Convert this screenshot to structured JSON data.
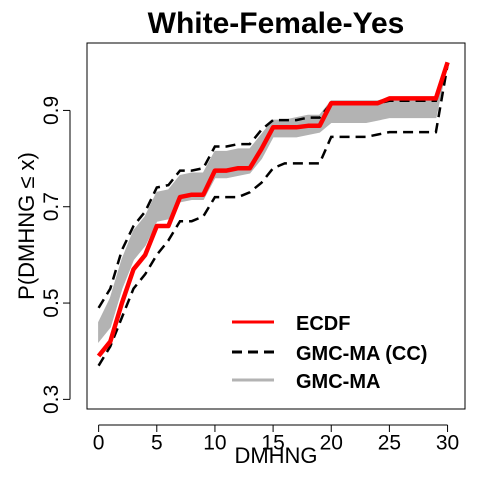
{
  "chart_data": {
    "type": "line",
    "title": "White-Female-Yes",
    "xlabel": "DMHNG",
    "ylabel": "P(DMHNG ≤ x)",
    "xlim": [
      -1,
      31.5
    ],
    "ylim": [
      0.28,
      1.04
    ],
    "xticks": [
      0,
      5,
      10,
      15,
      20,
      25,
      30
    ],
    "yticks": [
      0.3,
      0.5,
      0.7,
      0.9
    ],
    "grid": false,
    "legend_position": "bottom-right",
    "colors": {
      "ecdf": "#ff0000",
      "cc": "#000000",
      "ma": "#b3b3b3"
    },
    "x": [
      0,
      1,
      2,
      3,
      4,
      5,
      6,
      7,
      8,
      9,
      10,
      11,
      12,
      13,
      14,
      15,
      16,
      17,
      18,
      19,
      20,
      21,
      22,
      23,
      24,
      25,
      26,
      27,
      28,
      29,
      30
    ],
    "series": [
      {
        "name": "ECDF",
        "style": "solid",
        "values": [
          0.39,
          0.42,
          0.5,
          0.57,
          0.6,
          0.66,
          0.66,
          0.72,
          0.725,
          0.725,
          0.775,
          0.775,
          0.78,
          0.78,
          0.82,
          0.865,
          0.865,
          0.865,
          0.868,
          0.868,
          0.915,
          0.915,
          0.915,
          0.915,
          0.915,
          0.925,
          0.925,
          0.925,
          0.925,
          0.925,
          1.0
        ]
      },
      {
        "name": "GMC-MA (CC)",
        "style": "dashed",
        "values_lower": [
          0.37,
          0.41,
          0.47,
          0.53,
          0.56,
          0.6,
          0.63,
          0.67,
          0.67,
          0.68,
          0.72,
          0.72,
          0.72,
          0.73,
          0.75,
          0.78,
          0.79,
          0.79,
          0.79,
          0.79,
          0.845,
          0.845,
          0.845,
          0.845,
          0.85,
          0.855,
          0.855,
          0.855,
          0.855,
          0.855,
          0.995
        ],
        "values_upper": [
          0.49,
          0.53,
          0.61,
          0.66,
          0.69,
          0.74,
          0.745,
          0.775,
          0.775,
          0.78,
          0.825,
          0.825,
          0.83,
          0.83,
          0.86,
          0.88,
          0.88,
          0.88,
          0.885,
          0.885,
          0.915,
          0.915,
          0.915,
          0.915,
          0.915,
          0.92,
          0.92,
          0.92,
          0.92,
          0.92,
          0.995
        ]
      },
      {
        "name": "GMC-MA",
        "style": "band",
        "values_lower": [
          0.42,
          0.45,
          0.53,
          0.59,
          0.62,
          0.67,
          0.675,
          0.71,
          0.715,
          0.715,
          0.76,
          0.76,
          0.765,
          0.77,
          0.8,
          0.845,
          0.845,
          0.845,
          0.85,
          0.855,
          0.875,
          0.875,
          0.875,
          0.875,
          0.88,
          0.885,
          0.885,
          0.885,
          0.885,
          0.885,
          1.0
        ],
        "values_upper": [
          0.46,
          0.51,
          0.59,
          0.65,
          0.68,
          0.73,
          0.735,
          0.765,
          0.77,
          0.77,
          0.815,
          0.815,
          0.82,
          0.82,
          0.85,
          0.88,
          0.88,
          0.885,
          0.89,
          0.89,
          0.92,
          0.92,
          0.92,
          0.92,
          0.92,
          0.925,
          0.925,
          0.925,
          0.925,
          0.925,
          1.0
        ]
      }
    ],
    "legend": [
      "ECDF",
      "GMC-MA (CC)",
      "GMC-MA"
    ]
  }
}
